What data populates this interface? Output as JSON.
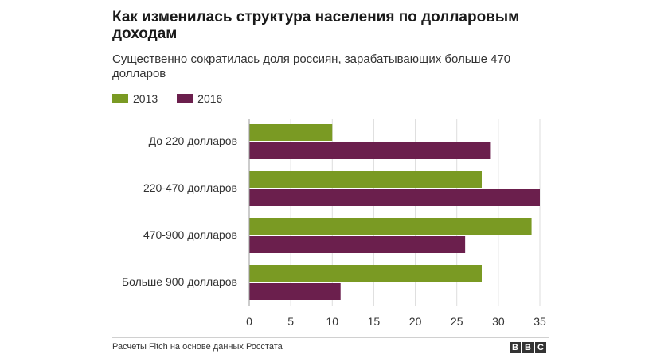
{
  "chart_data": {
    "type": "bar",
    "orientation": "horizontal",
    "title": "Как изменилась структура населения по долларовым доходам",
    "subtitle": "Существенно сократилась доля россиян, зарабатывающих больше 470 долларов",
    "categories": [
      "До 220 долларов",
      "220-470 долларов",
      "470-900 долларов",
      "Больше 900 долларов"
    ],
    "series": [
      {
        "name": "2013",
        "values": [
          10,
          28,
          34,
          28
        ],
        "color": "#7a9a23"
      },
      {
        "name": "2016",
        "values": [
          29,
          35,
          26,
          11
        ],
        "color": "#6b1f4d"
      }
    ],
    "x_ticks": [
      "0",
      "5",
      "10",
      "15",
      "20",
      "25",
      "30",
      "35"
    ],
    "xlim": [
      0,
      35
    ],
    "grid": true,
    "legend_position": "top-left"
  },
  "footer": {
    "source": "Расчеты Fitch на основе данных Росстата",
    "logo_letters": [
      "B",
      "B",
      "C"
    ]
  }
}
